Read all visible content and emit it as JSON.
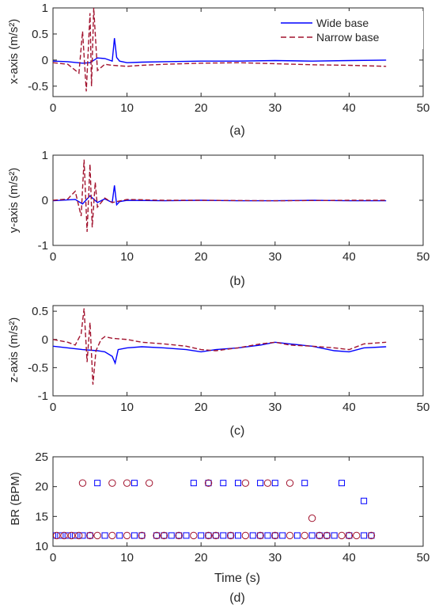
{
  "colors": {
    "wide": "#0000ff",
    "narrow": "#a2142f",
    "axis": "#262626"
  },
  "legend": {
    "wide": "Wide base",
    "narrow": "Narrow base",
    "placement": "top-right (panel a)"
  },
  "chart_data": [
    {
      "id": "a",
      "type": "line",
      "caption": "(a)",
      "ylabel": "x-axis (m/s²)",
      "xlabel": "",
      "xlim": [
        0,
        50
      ],
      "ylim": [
        -0.7,
        1
      ],
      "xticks": [
        0,
        10,
        20,
        30,
        40,
        50
      ],
      "yticks": [
        -0.5,
        0,
        0.5,
        1
      ],
      "series": [
        {
          "name": "Wide base",
          "style": "solid",
          "x": [
            0,
            2,
            4,
            5,
            6,
            7,
            8,
            8.3,
            8.6,
            9,
            10,
            12,
            15,
            20,
            25,
            30,
            35,
            40,
            45
          ],
          "y": [
            -0.02,
            -0.03,
            -0.06,
            -0.05,
            0.04,
            0.03,
            -0.02,
            0.42,
            0.05,
            -0.02,
            -0.05,
            -0.04,
            -0.03,
            -0.02,
            -0.02,
            -0.01,
            -0.02,
            -0.01,
            0.0
          ]
        },
        {
          "name": "Narrow base",
          "style": "dashed",
          "x": [
            0,
            2,
            3.5,
            4,
            4.5,
            5,
            5.2,
            5.5,
            6,
            7,
            8,
            10,
            12,
            15,
            20,
            25,
            30,
            35,
            40,
            45
          ],
          "y": [
            -0.05,
            -0.08,
            -0.25,
            0.55,
            -0.6,
            0.9,
            -0.5,
            1.0,
            -0.2,
            -0.08,
            -0.1,
            -0.12,
            -0.1,
            -0.08,
            -0.06,
            -0.05,
            -0.07,
            -0.09,
            -0.1,
            -0.12
          ]
        }
      ]
    },
    {
      "id": "b",
      "type": "line",
      "caption": "(b)",
      "ylabel": "y-axis (m/s²)",
      "xlabel": "",
      "xlim": [
        0,
        50
      ],
      "ylim": [
        -1,
        1
      ],
      "xticks": [
        0,
        10,
        20,
        30,
        40,
        50
      ],
      "yticks": [
        -1,
        0,
        1
      ],
      "series": [
        {
          "name": "Wide base",
          "style": "solid",
          "x": [
            0,
            3,
            4,
            5,
            6,
            7,
            8,
            8.3,
            8.6,
            9,
            10,
            15,
            20,
            25,
            30,
            35,
            40,
            45
          ],
          "y": [
            -0.01,
            0.02,
            -0.08,
            0.1,
            -0.05,
            0.03,
            -0.05,
            0.33,
            -0.1,
            -0.03,
            0.0,
            -0.01,
            0.0,
            -0.01,
            -0.01,
            0.0,
            -0.01,
            -0.01
          ]
        },
        {
          "name": "Narrow base",
          "style": "dashed",
          "x": [
            0,
            2,
            3,
            3.8,
            4.2,
            4.6,
            5,
            5.3,
            5.7,
            6,
            7,
            8,
            10,
            15,
            20,
            30,
            40,
            45
          ],
          "y": [
            0.0,
            0.03,
            0.2,
            -0.35,
            0.9,
            -0.7,
            0.8,
            -0.6,
            0.4,
            -0.15,
            0.05,
            -0.05,
            0.02,
            0.0,
            0.0,
            -0.01,
            0.0,
            0.0
          ]
        }
      ]
    },
    {
      "id": "c",
      "type": "line",
      "caption": "(c)",
      "ylabel": "z-axis (m/s²)",
      "xlabel": "",
      "xlim": [
        0,
        50
      ],
      "ylim": [
        -1,
        0.6
      ],
      "xticks": [
        0,
        10,
        20,
        30,
        40,
        50
      ],
      "yticks": [
        -1,
        -0.5,
        0,
        0.5
      ],
      "series": [
        {
          "name": "Wide base",
          "style": "solid",
          "x": [
            0,
            2,
            4,
            6,
            7,
            8,
            8.4,
            8.8,
            10,
            12,
            15,
            18,
            20,
            22,
            25,
            28,
            30,
            32,
            35,
            38,
            40,
            42,
            45
          ],
          "y": [
            -0.12,
            -0.15,
            -0.18,
            -0.2,
            -0.22,
            -0.3,
            -0.42,
            -0.18,
            -0.15,
            -0.13,
            -0.15,
            -0.18,
            -0.22,
            -0.18,
            -0.15,
            -0.1,
            -0.05,
            -0.08,
            -0.12,
            -0.2,
            -0.22,
            -0.15,
            -0.13
          ]
        },
        {
          "name": "Narrow base",
          "style": "dashed",
          "x": [
            0,
            2,
            3,
            3.8,
            4.2,
            4.6,
            5,
            5.4,
            5.8,
            6.5,
            7,
            8,
            10,
            12,
            15,
            18,
            20,
            22,
            25,
            28,
            30,
            32,
            35,
            38,
            40,
            42,
            45
          ],
          "y": [
            0.0,
            -0.05,
            -0.1,
            0.1,
            0.55,
            -0.4,
            0.3,
            -0.8,
            -0.2,
            0.0,
            0.05,
            0.02,
            0.0,
            -0.05,
            -0.08,
            -0.12,
            -0.18,
            -0.2,
            -0.15,
            -0.08,
            -0.05,
            -0.1,
            -0.12,
            -0.15,
            -0.18,
            -0.08,
            -0.05
          ]
        }
      ]
    },
    {
      "id": "d",
      "type": "scatter",
      "caption": "(d)",
      "ylabel": "BR (BPM)",
      "xlabel": "Time (s)",
      "xlim": [
        0,
        50
      ],
      "ylim": [
        10,
        25
      ],
      "xticks": [
        0,
        10,
        20,
        30,
        40,
        50
      ],
      "yticks": [
        10,
        15,
        20,
        25
      ],
      "series": [
        {
          "name": "Wide base",
          "marker": "square",
          "x": [
            0,
            1,
            2,
            3,
            4,
            5,
            7,
            9,
            11,
            12,
            14,
            15,
            16,
            17,
            18,
            20,
            21,
            22,
            23,
            24,
            25,
            27,
            28,
            29,
            30,
            31,
            33,
            35,
            36,
            37,
            38,
            40,
            42,
            43,
            6,
            11,
            19,
            21,
            23,
            25,
            28,
            30,
            34,
            39,
            42
          ],
          "y": [
            11.8,
            11.8,
            11.8,
            11.8,
            11.8,
            11.8,
            11.8,
            11.8,
            11.8,
            11.8,
            11.8,
            11.8,
            11.8,
            11.8,
            11.8,
            11.8,
            11.8,
            11.8,
            11.8,
            11.8,
            11.8,
            11.8,
            11.8,
            11.8,
            11.8,
            11.8,
            11.8,
            11.8,
            11.8,
            11.8,
            11.8,
            11.8,
            11.8,
            11.8,
            20.6,
            20.6,
            20.6,
            20.6,
            20.6,
            20.6,
            20.6,
            20.6,
            20.6,
            20.6,
            17.6
          ]
        },
        {
          "name": "Narrow base",
          "marker": "circle",
          "x": [
            0.5,
            1.5,
            2.5,
            3.5,
            5,
            6,
            8,
            10,
            12,
            14,
            15,
            17,
            19,
            21,
            22,
            24,
            26,
            28,
            30,
            32,
            34,
            36,
            37,
            39,
            40,
            41,
            43,
            4,
            8,
            10,
            13,
            21,
            26,
            29,
            32,
            35
          ],
          "y": [
            11.8,
            11.8,
            11.8,
            11.8,
            11.8,
            11.8,
            11.8,
            11.8,
            11.8,
            11.8,
            11.8,
            11.8,
            11.8,
            11.8,
            11.8,
            11.8,
            11.8,
            11.8,
            11.8,
            11.8,
            11.8,
            11.8,
            11.8,
            11.8,
            11.8,
            11.8,
            11.8,
            20.6,
            20.6,
            20.6,
            20.6,
            20.6,
            20.6,
            20.6,
            20.6,
            14.7
          ]
        }
      ]
    }
  ]
}
